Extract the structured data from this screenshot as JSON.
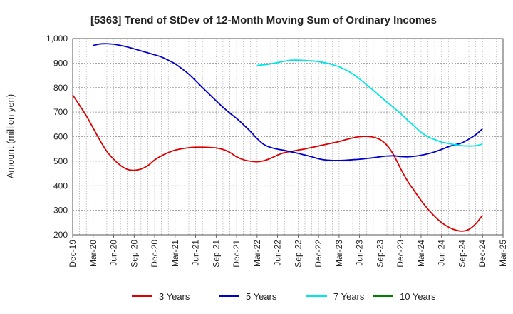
{
  "chart_data": {
    "type": "line",
    "title": "[5363]  Trend of StDev of 12-Month Moving Sum of Ordinary Incomes",
    "xlabel": "",
    "ylabel": "Amount (million yen)",
    "ylim": [
      200,
      1000
    ],
    "yticks": [
      "200",
      "300",
      "400",
      "500",
      "600",
      "700",
      "800",
      "900",
      "1,000"
    ],
    "xticks": [
      "Dec-19",
      "Mar-20",
      "Jun-20",
      "Sep-20",
      "Dec-20",
      "Mar-21",
      "Jun-21",
      "Sep-21",
      "Dec-21",
      "Mar-22",
      "Jun-22",
      "Sep-22",
      "Dec-22",
      "Mar-23",
      "Jun-23",
      "Sep-23",
      "Dec-23",
      "Mar-24",
      "Jun-24",
      "Sep-24",
      "Dec-24",
      "Mar-25"
    ],
    "grid": true,
    "legend_position": "bottom",
    "series": [
      {
        "name": "3 Years",
        "color": "#dd0000",
        "x": [
          "2019-12",
          "2020-01",
          "2020-02",
          "2020-03",
          "2020-04",
          "2020-05",
          "2020-06",
          "2020-07",
          "2020-08",
          "2020-09",
          "2020-10",
          "2020-11",
          "2020-12",
          "2021-01",
          "2021-02",
          "2021-03",
          "2021-04",
          "2021-05",
          "2021-06",
          "2021-07",
          "2021-08",
          "2021-09",
          "2021-10",
          "2021-11",
          "2021-12",
          "2022-01",
          "2022-02",
          "2022-03",
          "2022-04",
          "2022-05",
          "2022-06",
          "2022-07",
          "2022-08",
          "2022-09",
          "2022-10",
          "2022-11",
          "2022-12",
          "2023-01",
          "2023-02",
          "2023-03",
          "2023-04",
          "2023-05",
          "2023-06",
          "2023-07",
          "2023-08",
          "2023-09",
          "2023-10",
          "2023-11",
          "2023-12",
          "2024-01",
          "2024-02",
          "2024-03",
          "2024-04",
          "2024-05",
          "2024-06",
          "2024-07",
          "2024-08",
          "2024-09",
          "2024-10",
          "2024-11",
          "2024-12"
        ],
        "values": [
          770,
          728,
          685,
          635,
          585,
          540,
          508,
          483,
          467,
          463,
          468,
          482,
          505,
          522,
          535,
          545,
          551,
          555,
          557,
          557,
          556,
          554,
          548,
          536,
          518,
          506,
          500,
          498,
          502,
          512,
          525,
          535,
          540,
          545,
          550,
          556,
          562,
          568,
          574,
          580,
          588,
          595,
          600,
          601,
          598,
          588,
          565,
          525,
          470,
          420,
          380,
          340,
          305,
          275,
          250,
          232,
          220,
          215,
          222,
          245,
          280
        ]
      },
      {
        "name": "5 Years",
        "color": "#0000cc",
        "x": [
          "2020-03",
          "2020-04",
          "2020-05",
          "2020-06",
          "2020-07",
          "2020-08",
          "2020-09",
          "2020-10",
          "2020-11",
          "2020-12",
          "2021-01",
          "2021-02",
          "2021-03",
          "2021-04",
          "2021-05",
          "2021-06",
          "2021-07",
          "2021-08",
          "2021-09",
          "2021-10",
          "2021-11",
          "2021-12",
          "2022-01",
          "2022-02",
          "2022-03",
          "2022-04",
          "2022-05",
          "2022-06",
          "2022-07",
          "2022-08",
          "2022-09",
          "2022-10",
          "2022-11",
          "2022-12",
          "2023-01",
          "2023-02",
          "2023-03",
          "2023-04",
          "2023-05",
          "2023-06",
          "2023-07",
          "2023-08",
          "2023-09",
          "2023-10",
          "2023-11",
          "2023-12",
          "2024-01",
          "2024-02",
          "2024-03",
          "2024-04",
          "2024-05",
          "2024-06",
          "2024-07",
          "2024-08",
          "2024-09",
          "2024-10",
          "2024-11",
          "2024-12"
        ],
        "values": [
          972,
          978,
          979,
          977,
          972,
          966,
          958,
          950,
          942,
          934,
          925,
          912,
          897,
          877,
          855,
          828,
          800,
          773,
          746,
          720,
          696,
          674,
          649,
          622,
          592,
          568,
          556,
          549,
          544,
          538,
          532,
          525,
          518,
          510,
          505,
          503,
          503,
          504,
          506,
          508,
          511,
          514,
          518,
          521,
          522,
          519,
          518,
          520,
          524,
          530,
          538,
          548,
          559,
          567,
          575,
          590,
          608,
          632
        ]
      },
      {
        "name": "7 Years",
        "color": "#00e5e5",
        "x": [
          "2022-03",
          "2022-04",
          "2022-05",
          "2022-06",
          "2022-07",
          "2022-08",
          "2022-09",
          "2022-10",
          "2022-11",
          "2022-12",
          "2023-01",
          "2023-02",
          "2023-03",
          "2023-04",
          "2023-05",
          "2023-06",
          "2023-07",
          "2023-08",
          "2023-09",
          "2023-10",
          "2023-11",
          "2023-12",
          "2024-01",
          "2024-02",
          "2024-03",
          "2024-04",
          "2024-05",
          "2024-06",
          "2024-07",
          "2024-08",
          "2024-09",
          "2024-10",
          "2024-11",
          "2024-12"
        ],
        "values": [
          891,
          893,
          897,
          902,
          908,
          912,
          912,
          911,
          909,
          906,
          901,
          894,
          885,
          872,
          856,
          835,
          812,
          789,
          765,
          741,
          718,
          694,
          668,
          643,
          618,
          600,
          588,
          578,
          572,
          567,
          563,
          562,
          563,
          570
        ]
      },
      {
        "name": "10 Years",
        "color": "#008000",
        "x": [],
        "values": []
      }
    ]
  }
}
